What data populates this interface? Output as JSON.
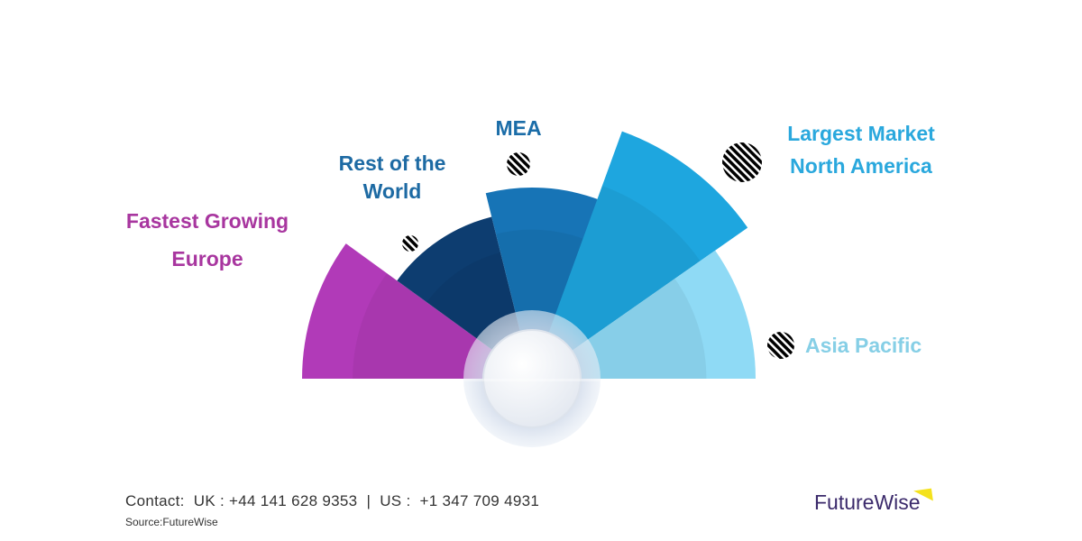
{
  "regions": [
    {
      "id": "europe",
      "tag": "Fastest Growing",
      "name": "Europe",
      "color": "#b13ab8",
      "label_color": "#a8369f"
    },
    {
      "id": "row",
      "tag": "",
      "name": "Rest of the World",
      "color": "#0d3d70",
      "label_color": "#1d6aa3"
    },
    {
      "id": "mea",
      "tag": "",
      "name": "MEA",
      "color": "#1774b6",
      "label_color": "#1b6da8"
    },
    {
      "id": "na",
      "tag": "Largest Market",
      "name": "North America",
      "color": "#1ea6df",
      "label_color": "#2aa8dd"
    },
    {
      "id": "ap",
      "tag": "",
      "name": "Asia Pacific",
      "color": "#8fdaf5",
      "label_color": "#86cfe6"
    }
  ],
  "footer": {
    "contact": "Contact:  UK : +44 141 628 9353  |  US :  +1 347 709 4931",
    "source": "Source:FutureWise"
  },
  "logo": {
    "text": "FutureWise",
    "accent": "#f4e21d"
  }
}
